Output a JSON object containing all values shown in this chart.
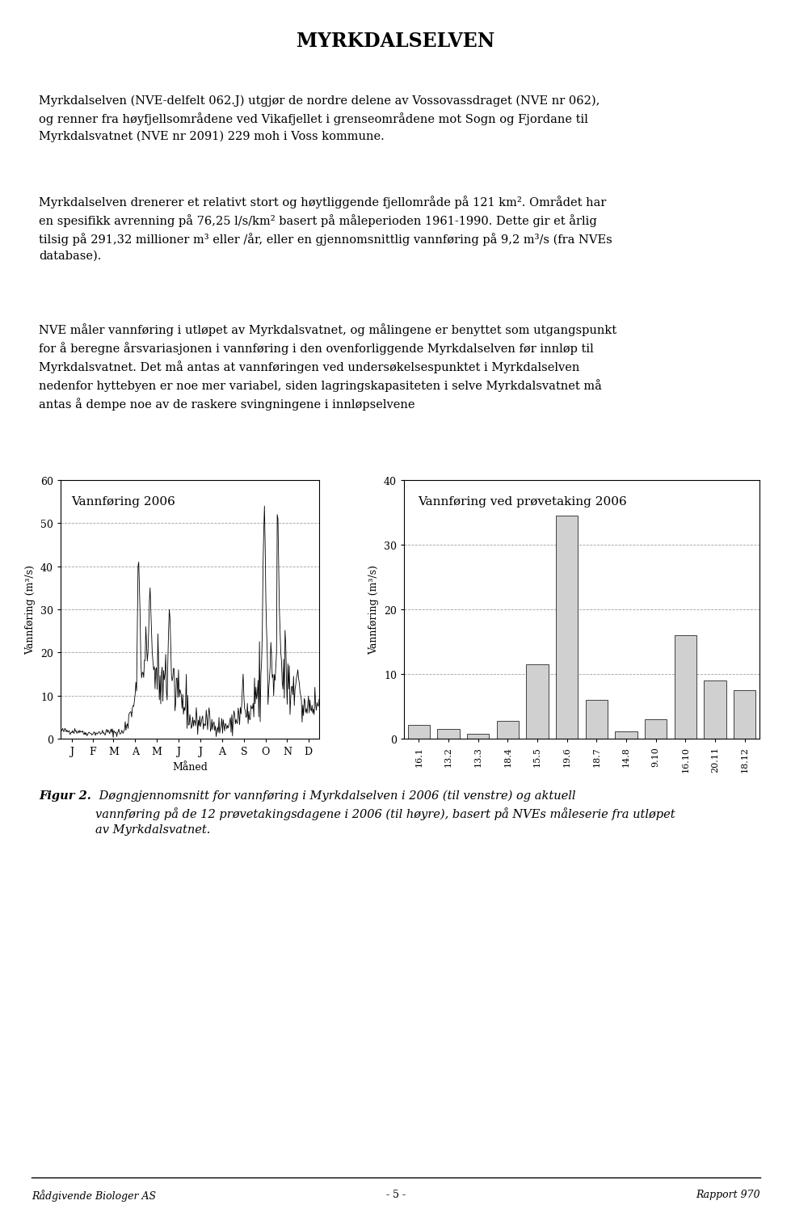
{
  "title": "MYRKDALSELVEN",
  "para1": "Myrkdalselven (NVE-delfelt 062.J) utgjør de nordre delene av Vossovassdraget (NVE nr 062),\nog renner fra høyfjellsområdene ved Vikafjellet i grenseområdene mot Sogn og Fjordane til\nMyrkdalsvatnet (NVE nr 2091) 229 moh i Voss kommune.",
  "para2": "Myrkdalselven drenerer et relativt stort og høytliggende fjellområde på 121 km². Området har\nen spesifikk avrenning på 76,25 l/s/km² basert på måleperioden 1961-1990. Dette gir et årlig\ntilsig på 291,32 millioner m³ eller /år, eller en gjennomsnittlig vannføring på 9,2 m³/s (fra NVEs\ndatabase).",
  "para3": "NVE måler vannføring i utløpet av Myrkdalsvatnet, og målingene er benyttet som utgangspunkt\nfor å beregne årsvariasjonen i vannføring i den ovenforliggende Myrkdalselven før innløp til\nMyrkdalsvatnet. Det må antas at vannføringen ved undersøkelsespunktet i Myrkdalselven\nnedenfor hyttebyen er noe mer variabel, siden lagringskapasiteten i selve Myrkdalsvatnet må\nantas å dempe noe av de raskere svingningene i innløpselvene",
  "chart1_title": "Vannføring 2006",
  "chart1_ylabel": "Vannføring (m³/s)",
  "chart1_xlabel": "Måned",
  "chart1_xticks": [
    "J",
    "F",
    "M",
    "A",
    "M",
    "J",
    "J",
    "A",
    "S",
    "O",
    "N",
    "D"
  ],
  "chart1_ylim": [
    0,
    60
  ],
  "chart1_yticks": [
    0,
    10,
    20,
    30,
    40,
    50,
    60
  ],
  "chart2_title": "Vannføring ved prøvetaking 2006",
  "chart2_ylabel": "Vannføring (m³/s)",
  "chart2_ylim": [
    0,
    40
  ],
  "chart2_yticks": [
    0,
    10,
    20,
    30,
    40
  ],
  "chart2_categories": [
    "16.1",
    "13.2",
    "13.3",
    "18.4",
    "15.5",
    "19.6",
    "18.7",
    "14.8",
    "9.10",
    "16.10",
    "20.11",
    "18.12"
  ],
  "chart2_values": [
    2.2,
    1.5,
    0.8,
    2.8,
    11.5,
    34.5,
    6.0,
    1.1,
    3.0,
    16.0,
    9.0,
    7.5
  ],
  "fig_caption_bold": "Figur 2.",
  "fig_caption_italic": " Døgngjennomsnitt for vannføring i Myrkdalselven i 2006 (til venstre) og aktuell\nvannføring på de 12 prøvetakingsdagene i 2006 (til høyre), basert på NVEs måleserie fra utløpet\nav Myrkdalsvatnet.",
  "footer_left": "Rådgivende Biologer AS",
  "footer_center": "- 5 -",
  "footer_right": "Rapport 970",
  "title_bg": "#f0f0f0",
  "page_color": "#ffffff",
  "bar_color": "#d0d0d0"
}
